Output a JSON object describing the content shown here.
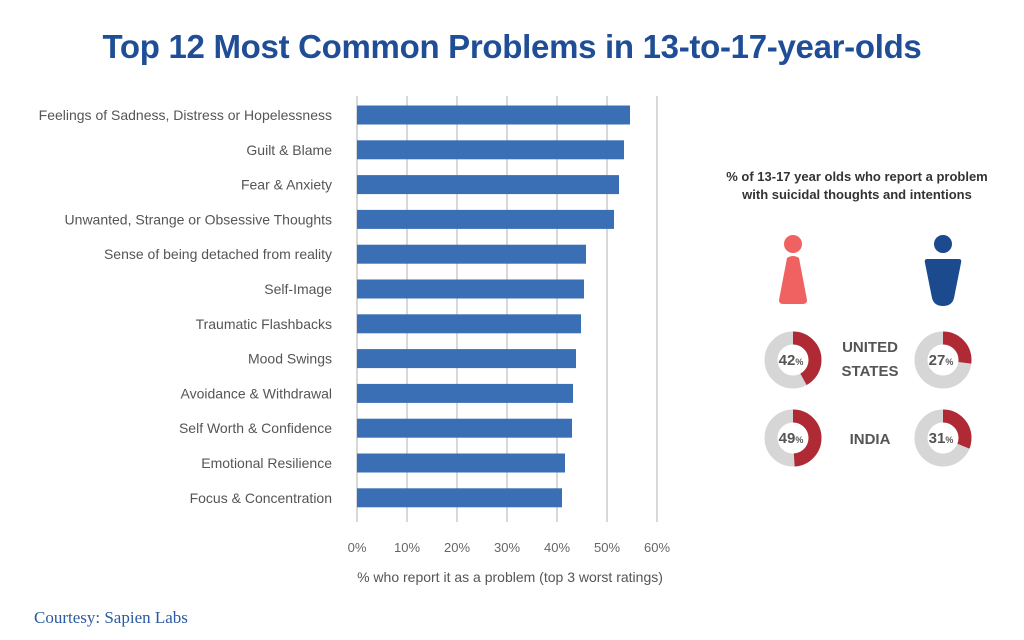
{
  "chart_data": [
    {
      "type": "bar",
      "orientation": "horizontal",
      "title": "Top 12 Most Common Problems in 13-to-17-year-olds",
      "xlabel": "% who report it as a problem (top 3 worst ratings)",
      "ylabel": "",
      "xlim": [
        0,
        60
      ],
      "x_ticks": [
        "0%",
        "10%",
        "20%",
        "30%",
        "40%",
        "50%",
        "60%"
      ],
      "grid": true,
      "bar_color": "#3a6fb5",
      "categories": [
        "Feelings of Sadness, Distress or Hopelessness",
        "Guilt & Blame",
        "Fear & Anxiety",
        "Unwanted, Strange or Obsessive Thoughts",
        "Sense of being detached from reality",
        "Self-Image",
        "Traumatic Flashbacks",
        "Mood Swings",
        "Avoidance & Withdrawal",
        "Self Worth & Confidence",
        "Emotional Resilience",
        "Focus & Concentration"
      ],
      "values": [
        54.6,
        53.4,
        52.4,
        51.4,
        45.8,
        45.4,
        44.8,
        43.8,
        43.2,
        43.0,
        41.6,
        41.0
      ]
    },
    {
      "type": "pie",
      "variant": "donut",
      "title": "% of 13-17 year olds who report a problem with suicidal thoughts and intentions",
      "groups": [
        {
          "name": "Female",
          "color": "#f06262"
        },
        {
          "name": "Male",
          "color": "#1b4a8f"
        }
      ],
      "rows": [
        {
          "country": "UNITED STATES",
          "female": 42,
          "male": 27
        },
        {
          "country": "INDIA",
          "female": 49,
          "male": 31
        }
      ],
      "fill_color": "#b02a35",
      "track_color": "#d6d6d6"
    }
  ],
  "header": {
    "title": "Top 12 Most Common Problems in 13-to-17-year-olds"
  },
  "side": {
    "title_line1": "% of 13-17 year olds who report a problem",
    "title_line2": "with suicidal thoughts and intentions",
    "female_icon": "female-person-icon",
    "male_icon": "male-person-icon",
    "pct_suffix": "%",
    "country_us_line1": "UNITED",
    "country_us_line2": "STATES",
    "country_india": "INDIA"
  },
  "footer": {
    "credit": "Courtesy: Sapien Labs"
  }
}
